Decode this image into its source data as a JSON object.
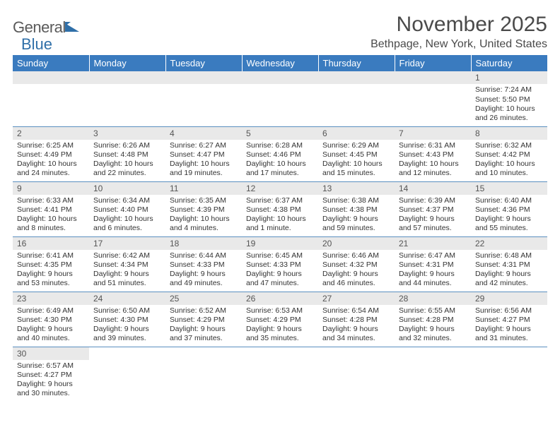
{
  "logo": {
    "text1": "General",
    "text2": "Blue"
  },
  "header": {
    "month_title": "November 2025",
    "location": "Bethpage, New York, United States"
  },
  "columns": [
    "Sunday",
    "Monday",
    "Tuesday",
    "Wednesday",
    "Thursday",
    "Friday",
    "Saturday"
  ],
  "colors": {
    "header_bg": "#3a7bbf",
    "header_text": "#ffffff",
    "daynum_bg": "#e9e9e9",
    "cell_border": "#5a8fc0",
    "text": "#333333",
    "logo_gray": "#5a5a5a",
    "logo_blue": "#2f6fa8"
  },
  "weeks": [
    [
      null,
      null,
      null,
      null,
      null,
      null,
      {
        "n": "1",
        "sunrise": "Sunrise: 7:24 AM",
        "sunset": "Sunset: 5:50 PM",
        "daylight": "Daylight: 10 hours and 26 minutes."
      }
    ],
    [
      {
        "n": "2",
        "sunrise": "Sunrise: 6:25 AM",
        "sunset": "Sunset: 4:49 PM",
        "daylight": "Daylight: 10 hours and 24 minutes."
      },
      {
        "n": "3",
        "sunrise": "Sunrise: 6:26 AM",
        "sunset": "Sunset: 4:48 PM",
        "daylight": "Daylight: 10 hours and 22 minutes."
      },
      {
        "n": "4",
        "sunrise": "Sunrise: 6:27 AM",
        "sunset": "Sunset: 4:47 PM",
        "daylight": "Daylight: 10 hours and 19 minutes."
      },
      {
        "n": "5",
        "sunrise": "Sunrise: 6:28 AM",
        "sunset": "Sunset: 4:46 PM",
        "daylight": "Daylight: 10 hours and 17 minutes."
      },
      {
        "n": "6",
        "sunrise": "Sunrise: 6:29 AM",
        "sunset": "Sunset: 4:45 PM",
        "daylight": "Daylight: 10 hours and 15 minutes."
      },
      {
        "n": "7",
        "sunrise": "Sunrise: 6:31 AM",
        "sunset": "Sunset: 4:43 PM",
        "daylight": "Daylight: 10 hours and 12 minutes."
      },
      {
        "n": "8",
        "sunrise": "Sunrise: 6:32 AM",
        "sunset": "Sunset: 4:42 PM",
        "daylight": "Daylight: 10 hours and 10 minutes."
      }
    ],
    [
      {
        "n": "9",
        "sunrise": "Sunrise: 6:33 AM",
        "sunset": "Sunset: 4:41 PM",
        "daylight": "Daylight: 10 hours and 8 minutes."
      },
      {
        "n": "10",
        "sunrise": "Sunrise: 6:34 AM",
        "sunset": "Sunset: 4:40 PM",
        "daylight": "Daylight: 10 hours and 6 minutes."
      },
      {
        "n": "11",
        "sunrise": "Sunrise: 6:35 AM",
        "sunset": "Sunset: 4:39 PM",
        "daylight": "Daylight: 10 hours and 4 minutes."
      },
      {
        "n": "12",
        "sunrise": "Sunrise: 6:37 AM",
        "sunset": "Sunset: 4:38 PM",
        "daylight": "Daylight: 10 hours and 1 minute."
      },
      {
        "n": "13",
        "sunrise": "Sunrise: 6:38 AM",
        "sunset": "Sunset: 4:38 PM",
        "daylight": "Daylight: 9 hours and 59 minutes."
      },
      {
        "n": "14",
        "sunrise": "Sunrise: 6:39 AM",
        "sunset": "Sunset: 4:37 PM",
        "daylight": "Daylight: 9 hours and 57 minutes."
      },
      {
        "n": "15",
        "sunrise": "Sunrise: 6:40 AM",
        "sunset": "Sunset: 4:36 PM",
        "daylight": "Daylight: 9 hours and 55 minutes."
      }
    ],
    [
      {
        "n": "16",
        "sunrise": "Sunrise: 6:41 AM",
        "sunset": "Sunset: 4:35 PM",
        "daylight": "Daylight: 9 hours and 53 minutes."
      },
      {
        "n": "17",
        "sunrise": "Sunrise: 6:42 AM",
        "sunset": "Sunset: 4:34 PM",
        "daylight": "Daylight: 9 hours and 51 minutes."
      },
      {
        "n": "18",
        "sunrise": "Sunrise: 6:44 AM",
        "sunset": "Sunset: 4:33 PM",
        "daylight": "Daylight: 9 hours and 49 minutes."
      },
      {
        "n": "19",
        "sunrise": "Sunrise: 6:45 AM",
        "sunset": "Sunset: 4:33 PM",
        "daylight": "Daylight: 9 hours and 47 minutes."
      },
      {
        "n": "20",
        "sunrise": "Sunrise: 6:46 AM",
        "sunset": "Sunset: 4:32 PM",
        "daylight": "Daylight: 9 hours and 46 minutes."
      },
      {
        "n": "21",
        "sunrise": "Sunrise: 6:47 AM",
        "sunset": "Sunset: 4:31 PM",
        "daylight": "Daylight: 9 hours and 44 minutes."
      },
      {
        "n": "22",
        "sunrise": "Sunrise: 6:48 AM",
        "sunset": "Sunset: 4:31 PM",
        "daylight": "Daylight: 9 hours and 42 minutes."
      }
    ],
    [
      {
        "n": "23",
        "sunrise": "Sunrise: 6:49 AM",
        "sunset": "Sunset: 4:30 PM",
        "daylight": "Daylight: 9 hours and 40 minutes."
      },
      {
        "n": "24",
        "sunrise": "Sunrise: 6:50 AM",
        "sunset": "Sunset: 4:30 PM",
        "daylight": "Daylight: 9 hours and 39 minutes."
      },
      {
        "n": "25",
        "sunrise": "Sunrise: 6:52 AM",
        "sunset": "Sunset: 4:29 PM",
        "daylight": "Daylight: 9 hours and 37 minutes."
      },
      {
        "n": "26",
        "sunrise": "Sunrise: 6:53 AM",
        "sunset": "Sunset: 4:29 PM",
        "daylight": "Daylight: 9 hours and 35 minutes."
      },
      {
        "n": "27",
        "sunrise": "Sunrise: 6:54 AM",
        "sunset": "Sunset: 4:28 PM",
        "daylight": "Daylight: 9 hours and 34 minutes."
      },
      {
        "n": "28",
        "sunrise": "Sunrise: 6:55 AM",
        "sunset": "Sunset: 4:28 PM",
        "daylight": "Daylight: 9 hours and 32 minutes."
      },
      {
        "n": "29",
        "sunrise": "Sunrise: 6:56 AM",
        "sunset": "Sunset: 4:27 PM",
        "daylight": "Daylight: 9 hours and 31 minutes."
      }
    ],
    [
      {
        "n": "30",
        "sunrise": "Sunrise: 6:57 AM",
        "sunset": "Sunset: 4:27 PM",
        "daylight": "Daylight: 9 hours and 30 minutes."
      },
      null,
      null,
      null,
      null,
      null,
      null
    ]
  ]
}
